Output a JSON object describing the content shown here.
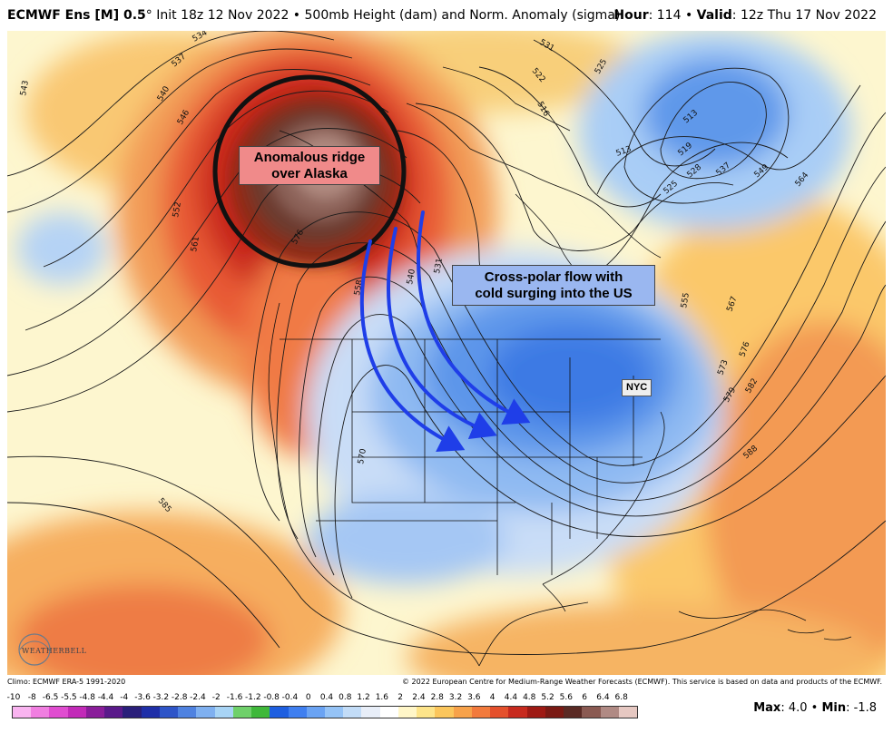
{
  "header": {
    "model": "ECMWF Ens [M] 0.5",
    "degree": "°",
    "init": " Init 18z 12 Nov 2022 • 500mb Height (dam) and Norm. Anomaly (sigma)",
    "hour_label": "Hour",
    "hour_value": ": 114 • ",
    "valid_label": "Valid",
    "valid_value": ": 12z Thu 17 Nov 2022"
  },
  "annotations": {
    "ridge_line1": "Anomalous ridge",
    "ridge_line2": "over Alaska",
    "polar_line1": "Cross-polar flow with",
    "polar_line2": "cold surging into the US",
    "city": "NYC"
  },
  "contour_labels": [
    "534",
    "537",
    "540",
    "546",
    "543",
    "552",
    "561",
    "576",
    "558",
    "540",
    "531",
    "531",
    "522",
    "516",
    "525",
    "513",
    "513",
    "519",
    "525",
    "528",
    "537",
    "549",
    "564",
    "555",
    "567",
    "576",
    "573",
    "579",
    "582",
    "588",
    "585",
    "570"
  ],
  "logo": {
    "text": "WEATHERBELL"
  },
  "footer": {
    "climo": "Climo: ECMWF ERA-5 1991-2020",
    "copyright": "© 2022 European Centre for Medium-Range Weather Forecasts (ECMWF). This service is based on data and products of the ECMWF."
  },
  "scale": {
    "ticks": [
      "-10",
      "-8",
      "-6.5",
      "-5.5",
      "-4.8",
      "-4.4",
      "-4",
      "-3.6",
      "-3.2",
      "-2.8",
      "-2.4",
      "-2",
      "-1.6",
      "-1.2",
      "-0.8",
      "-0.4",
      "0",
      "0.4",
      "0.8",
      "1.2",
      "1.6",
      "2",
      "2.4",
      "2.8",
      "3.2",
      "3.6",
      "4",
      "4.4",
      "4.8",
      "5.2",
      "5.6",
      "6",
      "6.4",
      "6.8"
    ],
    "colors": [
      "#f9b4f0",
      "#f07ee0",
      "#e04cd0",
      "#c22ab8",
      "#8a1d9a",
      "#5a1a8a",
      "#2a1f7a",
      "#1f2fa8",
      "#2e55c8",
      "#4f82e0",
      "#7fb0f0",
      "#a8d4f5",
      "#6fd06a",
      "#3fb83a",
      "#1e5fe0",
      "#3f7ff0",
      "#6aa3f3",
      "#95c3f6",
      "#c2dcf7",
      "#e8eef8",
      "#ffffff",
      "#fff6c8",
      "#fde48a",
      "#fbc65c",
      "#f7a24a",
      "#f27a3c",
      "#e4502c",
      "#c72a1e",
      "#9e1a14",
      "#7a1a14",
      "#5a2a24",
      "#8a5a52",
      "#b08a84",
      "#e6c8c2"
    ],
    "max_label": "Max",
    "max_value": ": 4.0 • ",
    "min_label": "Min",
    "min_value": ": -1.8"
  }
}
